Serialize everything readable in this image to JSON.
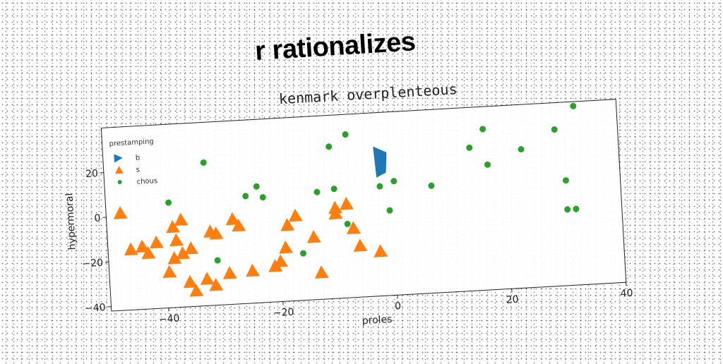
{
  "suptitle": "r rationalizes",
  "chart_data": {
    "type": "scatter",
    "title": "kenmark overplenteous",
    "xlabel": "proles",
    "ylabel": "hypermoral",
    "xlim": [
      -50,
      40
    ],
    "ylim": [
      -42,
      40
    ],
    "xticks": [
      -40,
      -20,
      0,
      20,
      40
    ],
    "yticks": [
      -40,
      -20,
      0,
      20
    ],
    "grid": false,
    "legend": {
      "title": "prestamping",
      "placement": "top-left"
    },
    "series": [
      {
        "name": "b",
        "marker": "polygon",
        "color": "#1f77b4",
        "points": [
          [
            -2.8,
            25
          ],
          [
            -0.5,
            22
          ],
          [
            -0.8,
            13
          ],
          [
            -2.5,
            11
          ]
        ]
      },
      {
        "name": "s",
        "marker": "triangle",
        "color": "#ff7f0e",
        "points": [
          [
            -47.5,
            1.5
          ],
          [
            -46,
            -15
          ],
          [
            -44,
            -14
          ],
          [
            -43,
            -17
          ],
          [
            -41.5,
            -12.5
          ],
          [
            -39.5,
            -26
          ],
          [
            -38.5,
            -6
          ],
          [
            -38,
            -12
          ],
          [
            -37,
            -18
          ],
          [
            -38.5,
            -20
          ],
          [
            -37,
            -3
          ],
          [
            -35.5,
            -16
          ],
          [
            -36,
            -31
          ],
          [
            -35,
            -35
          ],
          [
            -33,
            -30
          ],
          [
            -32,
            -9
          ],
          [
            -31,
            -10
          ],
          [
            -31.5,
            -33
          ],
          [
            -29,
            -28
          ],
          [
            -28,
            -4
          ],
          [
            -27,
            -7
          ],
          [
            -25,
            -27.5
          ],
          [
            -21,
            -26
          ],
          [
            -20,
            -24
          ],
          [
            -19,
            -18
          ],
          [
            -18.5,
            -8
          ],
          [
            -17,
            -4
          ],
          [
            -14,
            -14
          ],
          [
            -13,
            -30
          ],
          [
            -10,
            -4
          ],
          [
            -10,
            -1.5
          ],
          [
            -8,
            0
          ],
          [
            -7,
            -11
          ],
          [
            -6,
            -19
          ],
          [
            -2.5,
            -22
          ]
        ]
      },
      {
        "name": "chous",
        "marker": "circle",
        "color": "#2ca02c",
        "points": [
          [
            -32.5,
            22
          ],
          [
            -39,
            5
          ],
          [
            -25.5,
            6
          ],
          [
            -23.5,
            10
          ],
          [
            -22.5,
            5
          ],
          [
            -13,
            6
          ],
          [
            -10.5,
            26
          ],
          [
            -10,
            7
          ],
          [
            -8,
            -9
          ],
          [
            -7.5,
            31
          ],
          [
            -16,
            -21
          ],
          [
            -31,
            -22
          ],
          [
            -2,
            7
          ],
          [
            0.5,
            9
          ],
          [
            -0.5,
            -4
          ],
          [
            7,
            6
          ],
          [
            14,
            22
          ],
          [
            16.5,
            30
          ],
          [
            17,
            14
          ],
          [
            23,
            20
          ],
          [
            29,
            28
          ],
          [
            30.5,
            5
          ],
          [
            30.5,
            -8
          ],
          [
            32,
            -8
          ],
          [
            32.5,
            38
          ]
        ]
      }
    ]
  }
}
